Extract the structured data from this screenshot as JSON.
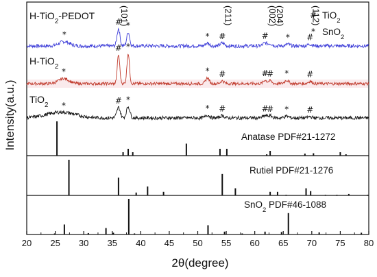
{
  "chart_data": {
    "type": "line",
    "xlabel": "2θ(degree)",
    "ylabel": "Intensity(a.u.)",
    "xlim": [
      20,
      80
    ],
    "x_ticks": [
      20,
      25,
      30,
      35,
      40,
      45,
      50,
      55,
      60,
      65,
      70,
      75,
      80
    ],
    "legend": {
      "position": "top-right",
      "items": [
        {
          "symbol": "#",
          "label": "TiO",
          "sub": "2"
        },
        {
          "symbol": "*",
          "label": "SnO",
          "sub": "2"
        }
      ]
    },
    "series": [
      {
        "name": "H-TiO2-PEDOT",
        "label": "H-TiO",
        "label_sub": "2",
        "label_suffix": "-PEDOT",
        "color": "#3d3dd8",
        "baseline": 0.0,
        "noise": 0.6,
        "peaks": [
          [
            26.6,
            1.5,
            0.9
          ],
          [
            36.1,
            6.0,
            0.25
          ],
          [
            37.8,
            4.8,
            0.25
          ],
          [
            51.7,
            1.0,
            0.35
          ],
          [
            54.3,
            1.0,
            0.35
          ],
          [
            61.8,
            1.0,
            0.35
          ],
          [
            62.7,
            0.8,
            0.35
          ],
          [
            65.8,
            0.6,
            0.35
          ],
          [
            69.7,
            0.6,
            0.35
          ]
        ]
      },
      {
        "name": "H-TiO2",
        "label": "H-TiO",
        "label_sub": "2",
        "label_suffix": "",
        "color": "#c0392b",
        "baseline": 0.0,
        "noise": 0.5,
        "peaks": [
          [
            26.5,
            1.8,
            0.9
          ],
          [
            36.1,
            10.0,
            0.22
          ],
          [
            37.8,
            10.5,
            0.22
          ],
          [
            51.7,
            2.0,
            0.3
          ],
          [
            54.3,
            1.0,
            0.3
          ],
          [
            61.8,
            1.2,
            0.3
          ],
          [
            62.7,
            1.0,
            0.3
          ],
          [
            65.6,
            1.2,
            0.35
          ],
          [
            69.7,
            0.8,
            0.35
          ]
        ]
      },
      {
        "name": "TiO2",
        "label": "TiO",
        "label_sub": "2",
        "label_suffix": "",
        "color": "#111111",
        "baseline": 0.0,
        "noise": 0.6,
        "peaks": [
          [
            26.0,
            2.0,
            2.5
          ],
          [
            36.1,
            3.6,
            0.3
          ],
          [
            37.8,
            3.9,
            0.3
          ],
          [
            51.7,
            1.0,
            0.35
          ],
          [
            54.3,
            0.8,
            0.35
          ],
          [
            61.8,
            0.8,
            0.35
          ],
          [
            62.7,
            0.7,
            0.35
          ],
          [
            65.6,
            0.6,
            0.4
          ],
          [
            69.7,
            0.4,
            0.4
          ]
        ]
      }
    ],
    "annotations": [
      {
        "text": "(101)",
        "x": 36.1,
        "rotated": true
      },
      {
        "text": "(211)",
        "x": 54.3,
        "rotated": true
      },
      {
        "text": "(002)",
        "x": 62.1,
        "rotated": true
      },
      {
        "text": "(204)",
        "x": 63.4,
        "rotated": true
      },
      {
        "text": "(112)",
        "x": 69.7,
        "rotated": true
      }
    ],
    "markers": [
      {
        "series": 0,
        "items": [
          [
            "*",
            26.6
          ],
          [
            "#",
            36.1
          ],
          [
            "*",
            37.8
          ],
          [
            "*",
            51.7
          ],
          [
            "#",
            54.3
          ],
          [
            "#",
            61.8
          ],
          [
            "*",
            65.8
          ],
          [
            "#",
            69.7
          ]
        ]
      },
      {
        "series": 1,
        "items": [
          [
            "*",
            26.5
          ],
          [
            "#",
            36.1
          ],
          [
            "*",
            37.8
          ],
          [
            "*",
            51.7
          ],
          [
            "#",
            54.3
          ],
          [
            "#",
            61.8
          ],
          [
            "#",
            62.7
          ],
          [
            "*",
            65.6
          ],
          [
            "#",
            69.7
          ]
        ]
      },
      {
        "series": 2,
        "items": [
          [
            "*",
            26.5
          ],
          [
            "#",
            36.1
          ],
          [
            "*",
            37.8
          ],
          [
            "*",
            51.7
          ],
          [
            "#",
            54.3
          ],
          [
            "#",
            61.8
          ],
          [
            "#",
            62.7
          ],
          [
            "*",
            65.6
          ],
          [
            "#",
            69.7
          ]
        ]
      }
    ],
    "reference_patterns": [
      {
        "name": "Anatase",
        "pdf": "PDF#21-1272",
        "sticks": [
          [
            25.3,
            100
          ],
          [
            36.9,
            10
          ],
          [
            37.8,
            20
          ],
          [
            38.6,
            10
          ],
          [
            48.0,
            35
          ],
          [
            53.9,
            20
          ],
          [
            55.1,
            20
          ],
          [
            62.1,
            4
          ],
          [
            62.7,
            14
          ],
          [
            68.8,
            6
          ],
          [
            70.3,
            7
          ],
          [
            75.0,
            10
          ],
          [
            76.0,
            4
          ]
        ]
      },
      {
        "name": "Rutiel",
        "pdf": "PDF#21-1276",
        "sticks": [
          [
            27.4,
            100
          ],
          [
            36.1,
            50
          ],
          [
            39.2,
            8
          ],
          [
            41.2,
            25
          ],
          [
            44.0,
            10
          ],
          [
            54.3,
            60
          ],
          [
            56.6,
            20
          ],
          [
            62.7,
            10
          ],
          [
            64.0,
            10
          ],
          [
            65.5,
            2
          ],
          [
            69.0,
            20
          ],
          [
            69.8,
            12
          ],
          [
            72.4,
            2
          ],
          [
            74.4,
            2
          ],
          [
            76.5,
            4
          ],
          [
            79.8,
            2
          ]
        ]
      },
      {
        "name": "SnO",
        "name_sub": "2",
        "pdf": "PDF#46-1088",
        "sticks": [
          [
            24.9,
            3
          ],
          [
            26.6,
            28
          ],
          [
            30.8,
            4
          ],
          [
            33.9,
            18
          ],
          [
            35.2,
            5
          ],
          [
            37.9,
            100
          ],
          [
            38.9,
            3
          ],
          [
            51.8,
            26
          ],
          [
            54.7,
            8
          ],
          [
            57.8,
            3
          ],
          [
            61.8,
            8
          ],
          [
            64.7,
            7
          ],
          [
            65.9,
            60
          ],
          [
            71.3,
            6
          ],
          [
            78.7,
            5
          ]
        ]
      }
    ]
  }
}
